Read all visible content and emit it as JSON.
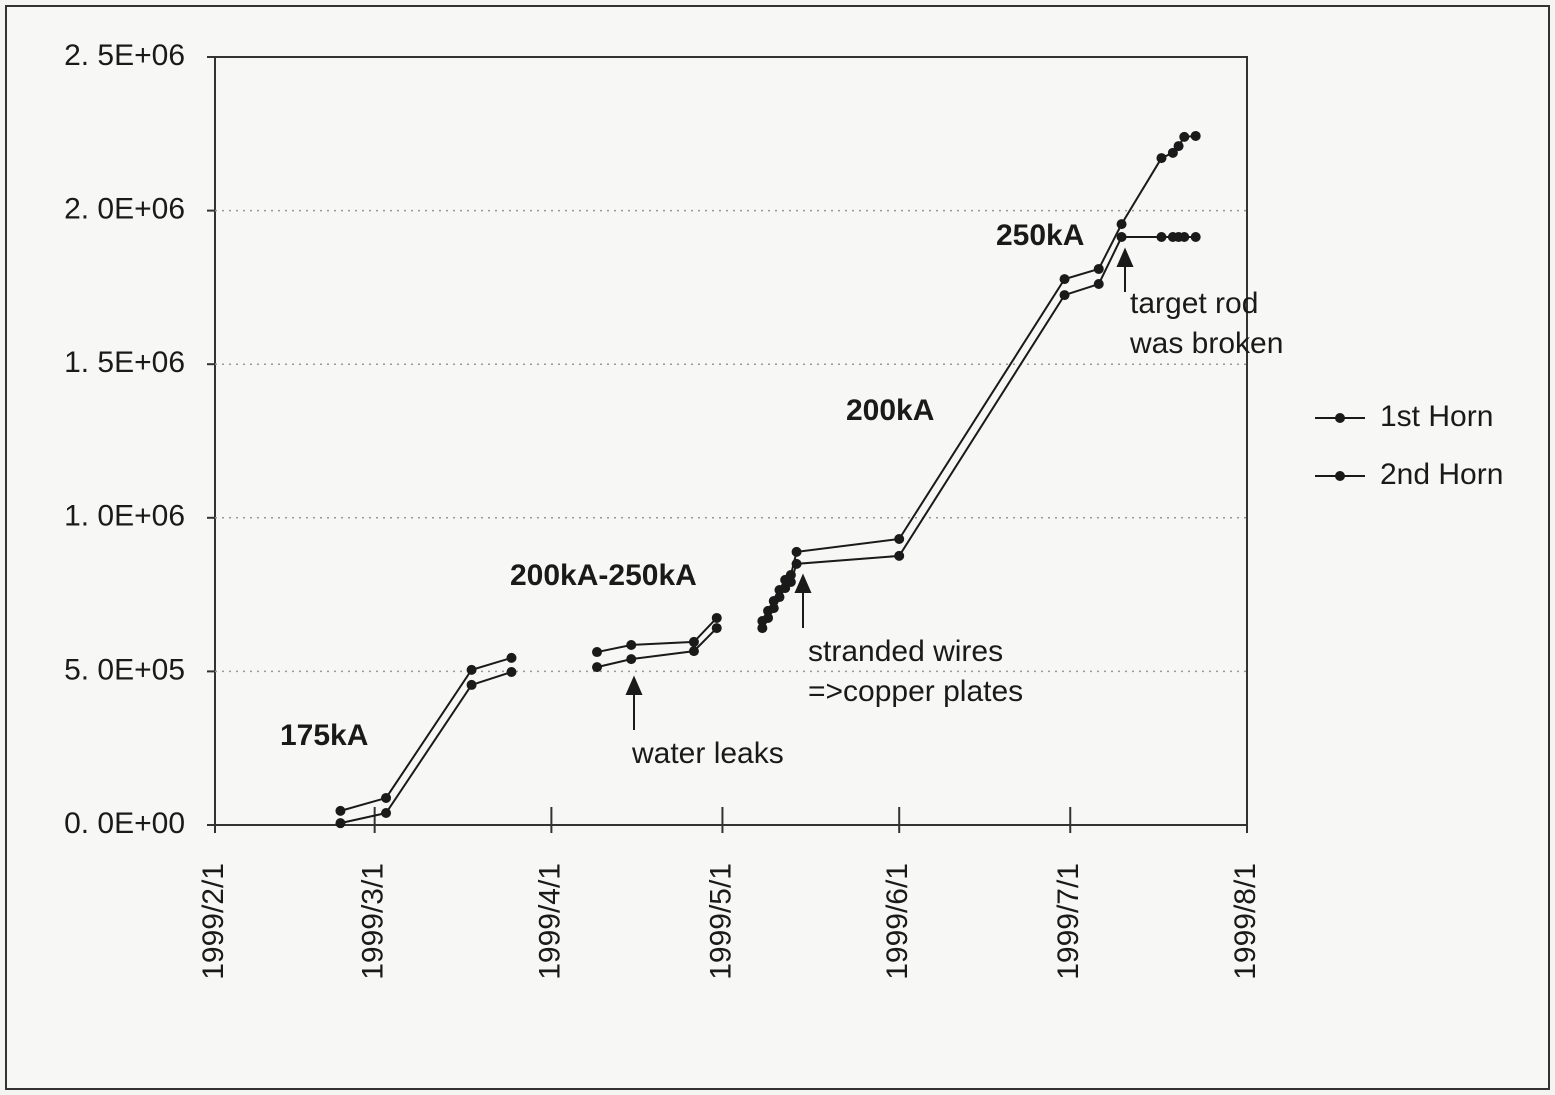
{
  "chart_data": {
    "type": "line",
    "x": [
      "1999/2/23",
      "1999/3/3",
      "1999/3/18",
      "1999/3/25",
      null,
      "1999/4/9",
      "1999/4/15",
      "1999/4/26",
      "1999/4/30",
      null,
      "1999/5/8",
      "1999/5/9",
      "1999/5/10",
      "1999/5/11",
      "1999/5/12",
      "1999/5/13",
      "1999/5/14",
      "1999/6/1",
      "1999/6/30",
      "1999/7/6",
      "1999/7/10",
      "1999/7/17",
      "1999/7/19",
      "1999/7/20",
      "1999/7/21",
      "1999/7/23"
    ],
    "series": [
      {
        "name": "1st Horn",
        "color": "#1a1a1a",
        "values": [
          46000,
          88000,
          505000,
          544000,
          null,
          563000,
          586000,
          596000,
          674000,
          null,
          664000,
          697000,
          729000,
          765000,
          798000,
          814000,
          889000,
          931000,
          1777000,
          1810000,
          1956000,
          2171000,
          2188000,
          2210000,
          2240000,
          2243000
        ]
      },
      {
        "name": "2nd Horn",
        "color": "#1a1a1a",
        "values": [
          6000,
          39000,
          456000,
          498000,
          null,
          514000,
          540000,
          566000,
          641000,
          null,
          641000,
          674000,
          706000,
          742000,
          771000,
          791000,
          850000,
          876000,
          1725000,
          1761000,
          1914000,
          1914000,
          1914000,
          1914000,
          1914000,
          1914000
        ]
      }
    ],
    "xlim": [
      "1999/2/1",
      "1999/8/1"
    ],
    "xticks": [
      "1999/2/1",
      "1999/3/1",
      "1999/4/1",
      "1999/5/1",
      "1999/6/1",
      "1999/7/1",
      "1999/8/1"
    ],
    "ylim": [
      0,
      2500000
    ],
    "yticks": [
      {
        "value": 0,
        "label": "0. 0E+00"
      },
      {
        "value": 500000,
        "label": "5. 0E+05"
      },
      {
        "value": 1000000,
        "label": "1. 0E+06"
      },
      {
        "value": 1500000,
        "label": "1. 5E+06"
      },
      {
        "value": 2000000,
        "label": "2. 0E+06"
      },
      {
        "value": 2500000,
        "label": "2. 5E+06"
      }
    ],
    "grid": true,
    "legend": "right",
    "annotations": [
      "175kA",
      "200kA-250kA",
      "water leaks",
      "stranded wires",
      "=>copper plates",
      "200kA",
      "250kA",
      "target rod",
      "was broken"
    ]
  }
}
